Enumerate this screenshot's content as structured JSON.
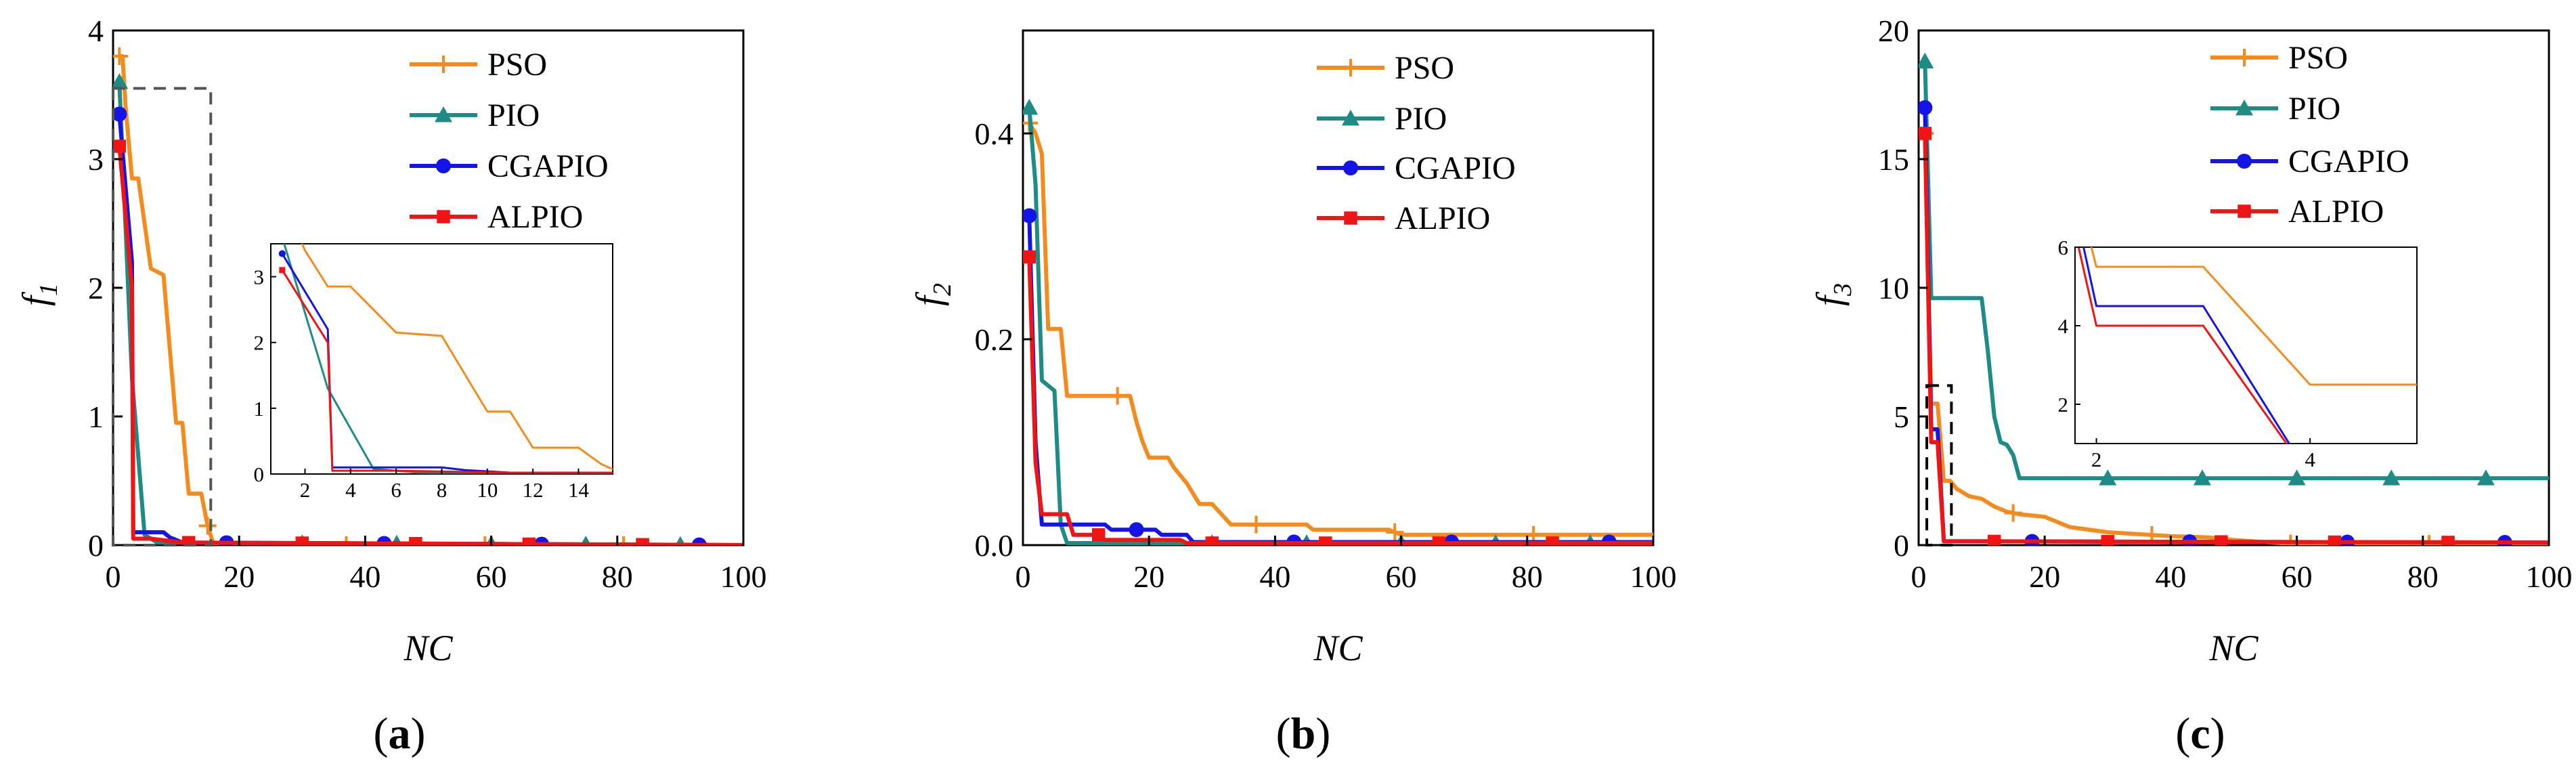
{
  "colors": {
    "PSO": "#F28C1F",
    "PIO": "#1E8C84",
    "CGAPIO": "#1414E6",
    "ALPIO": "#F01414"
  },
  "chart_data": [
    {
      "type": "line",
      "ylabel_main": "f",
      "ylabel_sub": "1",
      "xlabel": "NC",
      "caption_prefix": "(",
      "caption_letter": "a",
      "caption_suffix": ")",
      "xlim": [
        0,
        100
      ],
      "ylim": [
        0,
        4
      ],
      "xticks": [
        0,
        20,
        40,
        60,
        80,
        100
      ],
      "yticks": [
        0,
        1,
        2,
        3,
        4
      ],
      "legend": [
        "PSO",
        "PIO",
        "CGAPIO",
        "ALPIO"
      ],
      "series": [
        {
          "name": "PSO",
          "marker": "plus",
          "x": [
            1,
            1.5,
            2,
            3,
            4,
            6,
            8,
            10,
            11,
            12,
            14,
            15,
            16,
            100
          ],
          "y": [
            3.8,
            3.8,
            3.4,
            2.85,
            2.85,
            2.15,
            2.1,
            0.95,
            0.95,
            0.4,
            0.4,
            0.15,
            0,
            0
          ]
        },
        {
          "name": "PIO",
          "marker": "triangle",
          "x": [
            1,
            3,
            5,
            7,
            100
          ],
          "y": [
            3.6,
            1.3,
            0.08,
            0.02,
            0
          ]
        },
        {
          "name": "CGAPIO",
          "marker": "circle",
          "x": [
            1,
            3,
            3.2,
            8,
            9,
            11,
            100
          ],
          "y": [
            3.35,
            2.2,
            0.1,
            0.1,
            0.06,
            0.02,
            0
          ]
        },
        {
          "name": "ALPIO",
          "marker": "square",
          "x": [
            1,
            3,
            3.2,
            6,
            11,
            100
          ],
          "y": [
            3.1,
            2.0,
            0.05,
            0.05,
            0.02,
            0
          ]
        }
      ],
      "inset": {
        "xlim": [
          0.5,
          15.5
        ],
        "ylim": [
          0,
          3.5
        ],
        "xticks": [
          2,
          4,
          6,
          8,
          10,
          12,
          14
        ],
        "yticks": [
          0,
          1,
          2,
          3
        ]
      },
      "zoom_box": {
        "x": [
          0,
          15.5
        ],
        "y": [
          0,
          3.55
        ]
      }
    },
    {
      "type": "line",
      "ylabel_main": "f",
      "ylabel_sub": "2",
      "xlabel": "NC",
      "caption_prefix": "(",
      "caption_letter": "b",
      "caption_suffix": ")",
      "xlim": [
        0,
        100
      ],
      "ylim": [
        0,
        0.5
      ],
      "xticks": [
        0,
        20,
        40,
        60,
        80,
        100
      ],
      "yticks": [
        0,
        0.2,
        0.4
      ],
      "legend": [
        "PSO",
        "PIO",
        "CGAPIO",
        "ALPIO"
      ],
      "series": [
        {
          "name": "PSO",
          "marker": "plus",
          "x": [
            1,
            2,
            3,
            4,
            5,
            6,
            7,
            8,
            9,
            17,
            18,
            19,
            20,
            23,
            24,
            26,
            28,
            30,
            33,
            36,
            45,
            46,
            58,
            60,
            70,
            100
          ],
          "y": [
            0.41,
            0.4,
            0.38,
            0.21,
            0.21,
            0.21,
            0.145,
            0.145,
            0.145,
            0.145,
            0.12,
            0.1,
            0.085,
            0.085,
            0.075,
            0.06,
            0.04,
            0.04,
            0.02,
            0.02,
            0.02,
            0.015,
            0.015,
            0.01,
            0.01,
            0.01
          ]
        },
        {
          "name": "PIO",
          "marker": "triangle",
          "x": [
            1,
            2,
            3,
            4,
            5,
            6,
            7,
            100
          ],
          "y": [
            0.425,
            0.35,
            0.16,
            0.155,
            0.15,
            0.02,
            0.002,
            0.002
          ]
        },
        {
          "name": "CGAPIO",
          "marker": "circle",
          "x": [
            1,
            2,
            3,
            13,
            14,
            21,
            22,
            26,
            27,
            100
          ],
          "y": [
            0.32,
            0.1,
            0.02,
            0.02,
            0.015,
            0.015,
            0.01,
            0.01,
            0.003,
            0.003
          ]
        },
        {
          "name": "ALPIO",
          "marker": "square",
          "x": [
            1,
            2,
            3,
            7,
            8,
            12,
            13,
            25,
            26,
            100
          ],
          "y": [
            0.28,
            0.08,
            0.03,
            0.03,
            0.01,
            0.01,
            0.005,
            0.005,
            0.002,
            0.002
          ]
        }
      ]
    },
    {
      "type": "line",
      "ylabel_main": "f",
      "ylabel_sub": "3",
      "xlabel": "NC",
      "caption_prefix": "(",
      "caption_letter": "c",
      "caption_suffix": ")",
      "xlim": [
        0,
        100
      ],
      "ylim": [
        0,
        20
      ],
      "xticks": [
        0,
        20,
        40,
        60,
        80,
        100
      ],
      "yticks": [
        0,
        5,
        10,
        15,
        20
      ],
      "legend": [
        "PSO",
        "PIO",
        "CGAPIO",
        "ALPIO"
      ],
      "series": [
        {
          "name": "PSO",
          "marker": "plus",
          "x": [
            1,
            2,
            3,
            4,
            5,
            6,
            8,
            10,
            12,
            14,
            16,
            20,
            24,
            30,
            40,
            46,
            50,
            56,
            60,
            100
          ],
          "y": [
            16,
            5.5,
            5.5,
            2.5,
            2.5,
            2.2,
            1.9,
            1.8,
            1.5,
            1.3,
            1.2,
            1.1,
            0.7,
            0.5,
            0.35,
            0.3,
            0.2,
            0.1,
            0.05,
            0.05
          ]
        },
        {
          "name": "PIO",
          "marker": "triangle",
          "x": [
            1,
            2,
            3,
            10,
            11,
            12,
            13,
            14,
            15,
            16,
            100
          ],
          "y": [
            18.8,
            9.6,
            9.6,
            9.6,
            7.5,
            5,
            4,
            3.9,
            3.5,
            2.6,
            2.6
          ]
        },
        {
          "name": "CGAPIO",
          "marker": "circle",
          "x": [
            1,
            2,
            3,
            4,
            100
          ],
          "y": [
            17,
            4.5,
            4.5,
            0.15,
            0.1
          ]
        },
        {
          "name": "ALPIO",
          "marker": "square",
          "x": [
            1,
            2,
            3,
            4,
            100
          ],
          "y": [
            16,
            4,
            4,
            0.15,
            0.1
          ]
        }
      ],
      "inset": {
        "xlim": [
          1.8,
          5
        ],
        "ylim": [
          1,
          6
        ],
        "xticks": [
          2,
          4
        ],
        "yticks": [
          2,
          4,
          6
        ]
      },
      "zoom_box": {
        "x": [
          1.3,
          5.2
        ],
        "y": [
          0,
          6.2
        ]
      }
    }
  ]
}
